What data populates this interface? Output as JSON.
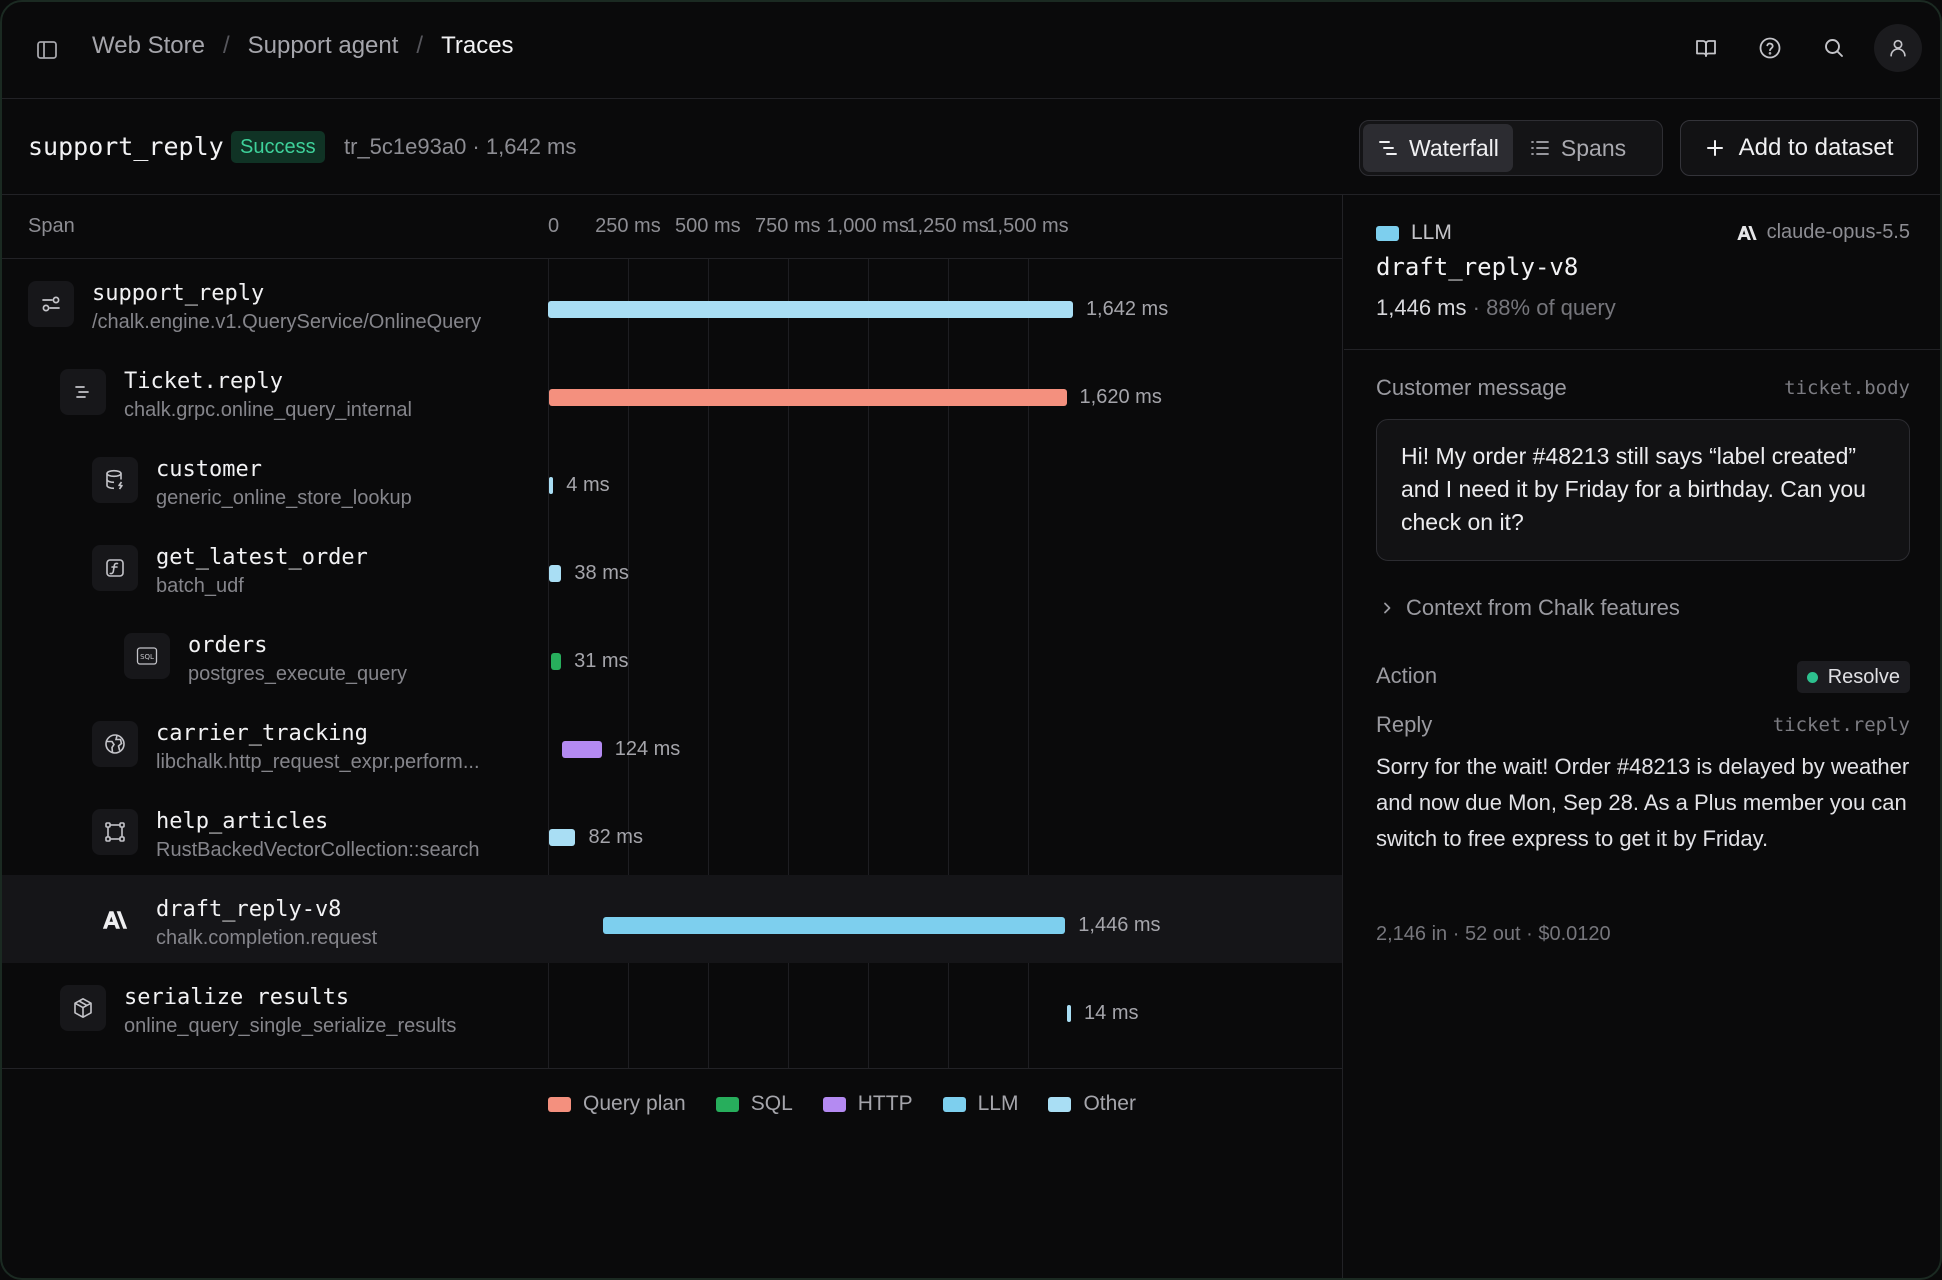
{
  "breadcrumb": [
    "Web Store",
    "Support agent",
    "Traces"
  ],
  "trace": {
    "name": "support_reply",
    "status": "Success",
    "meta": "tr_5c1e93a0 · 1,642 ms"
  },
  "view_toggle": {
    "waterfall": "Waterfall",
    "spans": "Spans",
    "active": "Waterfall"
  },
  "add_to_dataset": "Add to dataset",
  "timeline": {
    "span_header": "Span",
    "ticks": [
      "0",
      "250 ms",
      "500 ms",
      "750 ms",
      "1,000 ms",
      "1,250 ms",
      "1,500 ms"
    ],
    "total_ms": 1642
  },
  "spans": [
    {
      "name": "support_reply",
      "sub": "/chalk.engine.v1.QueryService/OnlineQuery",
      "icon": "route-icon",
      "depth": 0,
      "start_ms": 0,
      "duration_ms": 1642,
      "label": "1,642 ms",
      "category": "Other",
      "color": "#a9def4"
    },
    {
      "name": "Ticket.reply",
      "sub": "chalk.grpc.online_query_internal",
      "icon": "query-plan-icon",
      "depth": 1,
      "start_ms": 2,
      "duration_ms": 1620,
      "label": "1,620 ms",
      "category": "Query plan",
      "color": "#f4907e"
    },
    {
      "name": "customer",
      "sub": "generic_online_store_lookup",
      "icon": "database-icon",
      "depth": 2,
      "start_ms": 4,
      "duration_ms": 4,
      "label": "4 ms",
      "category": "Other",
      "color": "#a9def4"
    },
    {
      "name": "get_latest_order",
      "sub": "batch_udf",
      "icon": "function-icon",
      "depth": 2,
      "start_ms": 4,
      "duration_ms": 38,
      "label": "38 ms",
      "category": "Other",
      "color": "#a9def4"
    },
    {
      "name": "orders",
      "sub": "postgres_execute_query",
      "icon": "sql-icon",
      "depth": 3,
      "start_ms": 10,
      "duration_ms": 31,
      "label": "31 ms",
      "category": "SQL",
      "color": "#27ae5c"
    },
    {
      "name": "carrier_tracking",
      "sub": "libchalk.http_request_expr.perform...",
      "icon": "globe-icon",
      "depth": 2,
      "start_ms": 44,
      "duration_ms": 124,
      "label": "124 ms",
      "category": "HTTP",
      "color": "#b48af2"
    },
    {
      "name": "help_articles",
      "sub": "RustBackedVectorCollection::search",
      "icon": "vector-icon",
      "depth": 2,
      "start_ms": 4,
      "duration_ms": 82,
      "label": "82 ms",
      "category": "Other",
      "color": "#a9def4"
    },
    {
      "name": "draft_reply-v8",
      "sub": "chalk.completion.request",
      "icon": "anthropic-icon",
      "depth": 2,
      "start_ms": 172,
      "duration_ms": 1446,
      "label": "1,446 ms",
      "category": "LLM",
      "color": "#7dcfee",
      "selected": true
    },
    {
      "name": "serialize results",
      "sub": "online_query_single_serialize_results",
      "icon": "package-icon",
      "depth": 1,
      "start_ms": 1622,
      "duration_ms": 14,
      "label": "14 ms",
      "category": "Other",
      "color": "#a9def4"
    }
  ],
  "legend": [
    {
      "label": "Query plan",
      "color": "#f4907e"
    },
    {
      "label": "SQL",
      "color": "#27ae5c"
    },
    {
      "label": "HTTP",
      "color": "#b48af2"
    },
    {
      "label": "LLM",
      "color": "#7dcfee"
    },
    {
      "label": "Other",
      "color": "#a9def4"
    }
  ],
  "detail": {
    "kind": "LLM",
    "model": "claude-opus-5.5",
    "name": "draft_reply-v8",
    "duration": "1,446 ms",
    "percent": "· 88% of query",
    "customer_message_label": "Customer message",
    "customer_message_key": "ticket.body",
    "customer_message": "Hi! My order #48213 still says “label created” and I need it by Friday for a birthday. Can you check on it?",
    "context_toggle": "Context from Chalk features",
    "action_label": "Action",
    "action_value": "Resolve",
    "reply_label": "Reply",
    "reply_key": "ticket.reply",
    "reply": "Sorry for the wait! Order #48213 is delayed by weather and now due Mon, Sep 28. As a Plus member you can switch to free express to get it by Friday.",
    "usage": "2,146 in · 52 out · $0.0120"
  }
}
